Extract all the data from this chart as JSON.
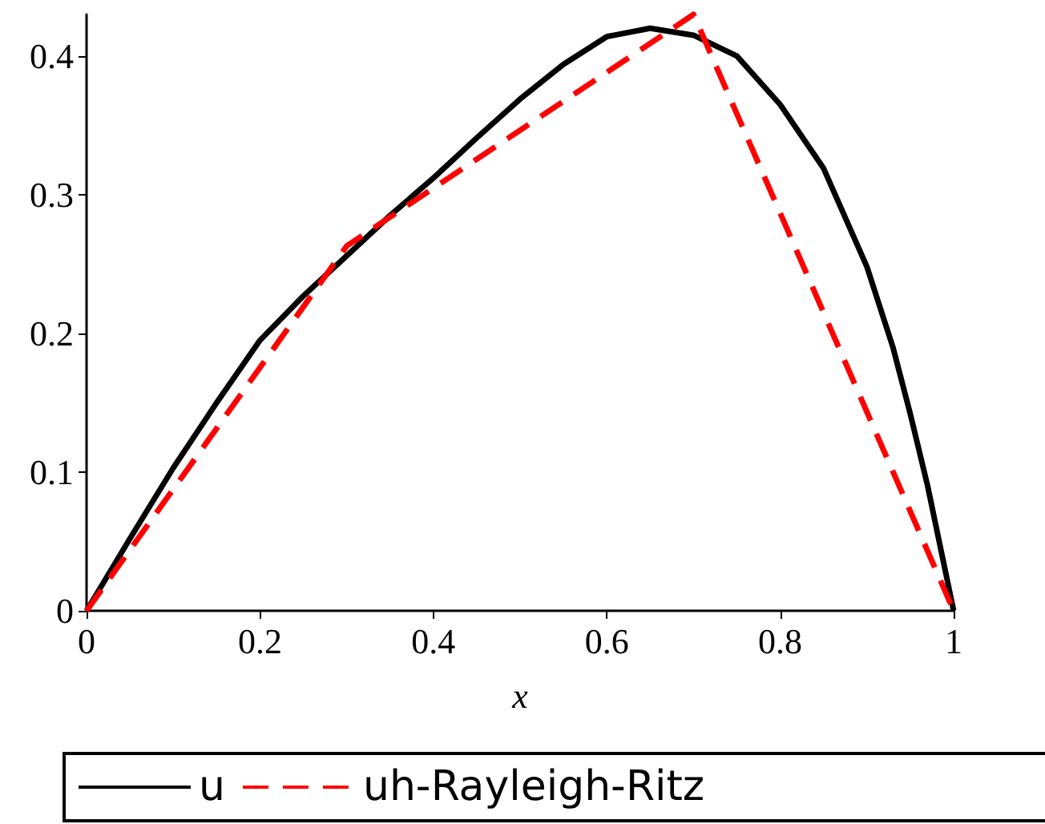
{
  "chart_data": {
    "type": "line",
    "xlabel": "x",
    "xlim": [
      0,
      1
    ],
    "ylim": [
      0,
      0.43
    ],
    "xticks": [
      0,
      0.2,
      0.4,
      0.6,
      0.8,
      1
    ],
    "yticks": [
      0,
      0.1,
      0.2,
      0.3,
      0.4
    ],
    "legend": "bottom",
    "grid": false,
    "marker": "none",
    "series": [
      {
        "name": "u",
        "color": "#000000",
        "line_style": "solid",
        "x": [
          0,
          0.05,
          0.1,
          0.15,
          0.2,
          0.25,
          0.3,
          0.35,
          0.4,
          0.45,
          0.5,
          0.55,
          0.6,
          0.65,
          0.7,
          0.75,
          0.8,
          0.85,
          0.9,
          0.93,
          0.95,
          0.97,
          0.99,
          1
        ],
        "values": [
          0,
          0.052,
          0.103,
          0.15,
          0.195,
          0.227,
          0.256,
          0.285,
          0.312,
          0.341,
          0.369,
          0.394,
          0.414,
          0.42,
          0.415,
          0.4,
          0.365,
          0.319,
          0.248,
          0.19,
          0.142,
          0.09,
          0.03,
          0
        ]
      },
      {
        "name": "uh-Rayleigh-Ritz",
        "color": "#ff0000",
        "line_style": "dashed",
        "x": [
          0,
          0.3,
          0.7,
          1
        ],
        "values": [
          0,
          0.263,
          0.43,
          0
        ]
      }
    ]
  }
}
